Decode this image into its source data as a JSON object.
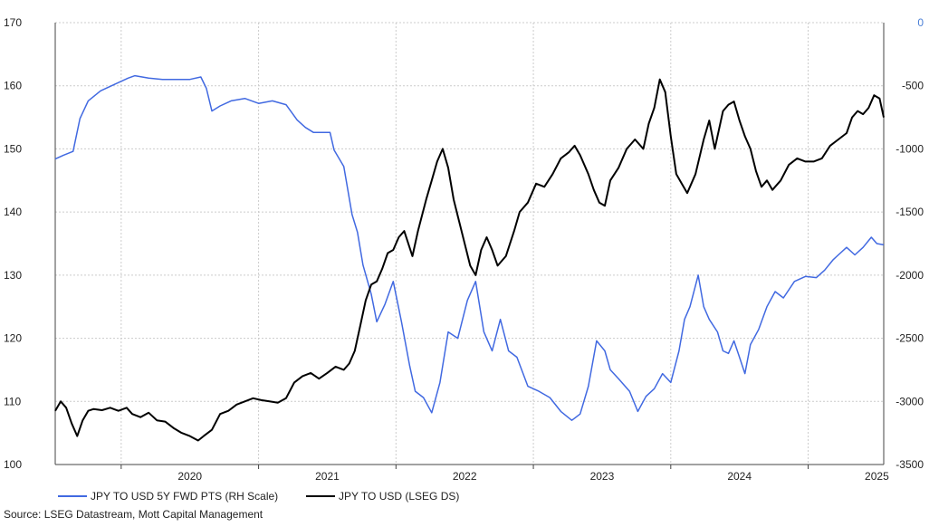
{
  "chart_data": {
    "type": "line",
    "title": "",
    "xlabel": "",
    "ylabel": "",
    "x_ticks": [
      "2020",
      "2021",
      "2022",
      "2023",
      "2024",
      "2025"
    ],
    "x_range": [
      2019.52,
      2025.55
    ],
    "y_left": {
      "range": [
        100,
        170
      ],
      "ticks": [
        "100",
        "110",
        "120",
        "130",
        "140",
        "150",
        "160",
        "170"
      ]
    },
    "y_right": {
      "range": [
        -3500,
        0
      ],
      "ticks": [
        "0",
        "-500",
        "-1000",
        "-1500",
        "-2000",
        "-2500",
        "-3000",
        "-3500"
      ]
    },
    "grid": true,
    "legend_position": "bottom-left",
    "series": [
      {
        "name": "JPY TO USD 5Y FWD PTS (RH Scale)",
        "axis": "right",
        "color": "#4169e1",
        "points": [
          [
            2019.52,
            -1080
          ],
          [
            2019.58,
            -1050
          ],
          [
            2019.65,
            -1020
          ],
          [
            2019.7,
            -760
          ],
          [
            2019.76,
            -620
          ],
          [
            2019.85,
            -540
          ],
          [
            2019.95,
            -490
          ],
          [
            2020.05,
            -440
          ],
          [
            2020.1,
            -420
          ],
          [
            2020.2,
            -440
          ],
          [
            2020.3,
            -450
          ],
          [
            2020.4,
            -450
          ],
          [
            2020.5,
            -450
          ],
          [
            2020.58,
            -430
          ],
          [
            2020.62,
            -520
          ],
          [
            2020.66,
            -700
          ],
          [
            2020.72,
            -660
          ],
          [
            2020.8,
            -620
          ],
          [
            2020.9,
            -600
          ],
          [
            2021.0,
            -640
          ],
          [
            2021.1,
            -620
          ],
          [
            2021.2,
            -650
          ],
          [
            2021.28,
            -770
          ],
          [
            2021.34,
            -830
          ],
          [
            2021.4,
            -870
          ],
          [
            2021.45,
            -870
          ],
          [
            2021.48,
            -870
          ],
          [
            2021.52,
            -870
          ],
          [
            2021.55,
            -1010
          ],
          [
            2021.62,
            -1140
          ],
          [
            2021.68,
            -1520
          ],
          [
            2021.72,
            -1660
          ],
          [
            2021.76,
            -1920
          ],
          [
            2021.82,
            -2150
          ],
          [
            2021.86,
            -2370
          ],
          [
            2021.92,
            -2230
          ],
          [
            2021.98,
            -2050
          ],
          [
            2022.04,
            -2370
          ],
          [
            2022.1,
            -2720
          ],
          [
            2022.14,
            -2920
          ],
          [
            2022.2,
            -2970
          ],
          [
            2022.26,
            -3090
          ],
          [
            2022.32,
            -2850
          ],
          [
            2022.38,
            -2450
          ],
          [
            2022.45,
            -2500
          ],
          [
            2022.52,
            -2200
          ],
          [
            2022.58,
            -2050
          ],
          [
            2022.64,
            -2450
          ],
          [
            2022.7,
            -2600
          ],
          [
            2022.76,
            -2350
          ],
          [
            2022.82,
            -2600
          ],
          [
            2022.88,
            -2650
          ],
          [
            2022.96,
            -2880
          ],
          [
            2023.04,
            -2920
          ],
          [
            2023.12,
            -2970
          ],
          [
            2023.2,
            -3080
          ],
          [
            2023.28,
            -3150
          ],
          [
            2023.34,
            -3100
          ],
          [
            2023.4,
            -2880
          ],
          [
            2023.46,
            -2520
          ],
          [
            2023.52,
            -2600
          ],
          [
            2023.56,
            -2750
          ],
          [
            2023.62,
            -2820
          ],
          [
            2023.7,
            -2920
          ],
          [
            2023.76,
            -3080
          ],
          [
            2023.82,
            -2960
          ],
          [
            2023.88,
            -2900
          ],
          [
            2023.94,
            -2780
          ],
          [
            2024.0,
            -2850
          ],
          [
            2024.06,
            -2600
          ],
          [
            2024.1,
            -2350
          ],
          [
            2024.14,
            -2250
          ],
          [
            2024.2,
            -2000
          ],
          [
            2024.24,
            -2250
          ],
          [
            2024.28,
            -2350
          ],
          [
            2024.34,
            -2450
          ],
          [
            2024.38,
            -2600
          ],
          [
            2024.42,
            -2620
          ],
          [
            2024.46,
            -2520
          ],
          [
            2024.5,
            -2650
          ],
          [
            2024.54,
            -2780
          ],
          [
            2024.58,
            -2550
          ],
          [
            2024.64,
            -2430
          ],
          [
            2024.7,
            -2250
          ],
          [
            2024.76,
            -2130
          ],
          [
            2024.82,
            -2180
          ],
          [
            2024.9,
            -2050
          ],
          [
            2024.98,
            -2010
          ],
          [
            2025.06,
            -2020
          ],
          [
            2025.12,
            -1960
          ],
          [
            2025.18,
            -1880
          ],
          [
            2025.22,
            -1840
          ],
          [
            2025.28,
            -1780
          ],
          [
            2025.34,
            -1840
          ],
          [
            2025.4,
            -1780
          ],
          [
            2025.46,
            -1700
          ],
          [
            2025.5,
            -1750
          ],
          [
            2025.55,
            -1760
          ]
        ]
      },
      {
        "name": "JPY TO USD (LSEG DS)",
        "axis": "left",
        "color": "#000000",
        "points": [
          [
            2019.52,
            108.5
          ],
          [
            2019.56,
            110.0
          ],
          [
            2019.6,
            109.0
          ],
          [
            2019.64,
            106.5
          ],
          [
            2019.68,
            104.5
          ],
          [
            2019.72,
            107.0
          ],
          [
            2019.76,
            108.5
          ],
          [
            2019.8,
            108.8
          ],
          [
            2019.86,
            108.6
          ],
          [
            2019.92,
            109.0
          ],
          [
            2019.98,
            108.5
          ],
          [
            2020.04,
            109.0
          ],
          [
            2020.08,
            108.0
          ],
          [
            2020.14,
            107.5
          ],
          [
            2020.2,
            108.2
          ],
          [
            2020.26,
            107.0
          ],
          [
            2020.32,
            106.8
          ],
          [
            2020.38,
            105.8
          ],
          [
            2020.44,
            105.0
          ],
          [
            2020.5,
            104.5
          ],
          [
            2020.56,
            103.8
          ],
          [
            2020.6,
            104.5
          ],
          [
            2020.66,
            105.5
          ],
          [
            2020.72,
            108.0
          ],
          [
            2020.78,
            108.5
          ],
          [
            2020.84,
            109.5
          ],
          [
            2020.9,
            110.0
          ],
          [
            2020.96,
            110.5
          ],
          [
            2021.02,
            110.2
          ],
          [
            2021.08,
            110.0
          ],
          [
            2021.14,
            109.8
          ],
          [
            2021.2,
            110.5
          ],
          [
            2021.26,
            113.0
          ],
          [
            2021.32,
            114.0
          ],
          [
            2021.38,
            114.5
          ],
          [
            2021.44,
            113.6
          ],
          [
            2021.5,
            114.5
          ],
          [
            2021.56,
            115.5
          ],
          [
            2021.62,
            115.0
          ],
          [
            2021.66,
            116.0
          ],
          [
            2021.7,
            118.0
          ],
          [
            2021.74,
            122.0
          ],
          [
            2021.78,
            126.0
          ],
          [
            2021.82,
            128.5
          ],
          [
            2021.86,
            129.0
          ],
          [
            2021.9,
            131.0
          ],
          [
            2021.94,
            133.5
          ],
          [
            2021.98,
            134.0
          ],
          [
            2022.02,
            136.0
          ],
          [
            2022.06,
            137.0
          ],
          [
            2022.12,
            133.0
          ],
          [
            2022.16,
            137.0
          ],
          [
            2022.22,
            142.0
          ],
          [
            2022.26,
            145.0
          ],
          [
            2022.3,
            148.0
          ],
          [
            2022.34,
            150.0
          ],
          [
            2022.38,
            147.0
          ],
          [
            2022.42,
            142.0
          ],
          [
            2022.46,
            138.5
          ],
          [
            2022.5,
            135.0
          ],
          [
            2022.54,
            131.5
          ],
          [
            2022.58,
            130.0
          ],
          [
            2022.62,
            134.0
          ],
          [
            2022.66,
            136.0
          ],
          [
            2022.7,
            134.0
          ],
          [
            2022.74,
            131.5
          ],
          [
            2022.8,
            133.0
          ],
          [
            2022.86,
            137.0
          ],
          [
            2022.9,
            140.0
          ],
          [
            2022.96,
            141.5
          ],
          [
            2023.02,
            144.5
          ],
          [
            2023.08,
            144.0
          ],
          [
            2023.14,
            146.0
          ],
          [
            2023.2,
            148.5
          ],
          [
            2023.26,
            149.5
          ],
          [
            2023.3,
            150.5
          ],
          [
            2023.34,
            149.0
          ],
          [
            2023.4,
            146.0
          ],
          [
            2023.44,
            143.5
          ],
          [
            2023.48,
            141.5
          ],
          [
            2023.52,
            141.0
          ],
          [
            2023.56,
            145.0
          ],
          [
            2023.62,
            147.0
          ],
          [
            2023.68,
            150.0
          ],
          [
            2023.74,
            151.5
          ],
          [
            2023.8,
            150.0
          ],
          [
            2023.84,
            154.0
          ],
          [
            2023.88,
            156.5
          ],
          [
            2023.92,
            161.0
          ],
          [
            2023.96,
            159.0
          ],
          [
            2024.0,
            152.0
          ],
          [
            2024.04,
            146.0
          ],
          [
            2024.08,
            144.5
          ],
          [
            2024.12,
            143.0
          ],
          [
            2024.18,
            146.0
          ],
          [
            2024.24,
            151.5
          ],
          [
            2024.28,
            154.5
          ],
          [
            2024.32,
            150.0
          ],
          [
            2024.38,
            156.0
          ],
          [
            2024.42,
            157.0
          ],
          [
            2024.46,
            157.5
          ],
          [
            2024.5,
            154.5
          ],
          [
            2024.54,
            152.0
          ],
          [
            2024.58,
            150.0
          ],
          [
            2024.62,
            146.5
          ],
          [
            2024.66,
            144.0
          ],
          [
            2024.7,
            145.0
          ],
          [
            2024.74,
            143.5
          ],
          [
            2024.8,
            145.0
          ],
          [
            2024.86,
            147.5
          ],
          [
            2024.92,
            148.5
          ],
          [
            2024.98,
            148.0
          ],
          [
            2025.04,
            148.0
          ],
          [
            2025.1,
            148.5
          ],
          [
            2025.16,
            150.5
          ],
          [
            2025.22,
            151.5
          ],
          [
            2025.28,
            152.5
          ],
          [
            2025.32,
            155.0
          ],
          [
            2025.36,
            156.0
          ],
          [
            2025.4,
            155.5
          ],
          [
            2025.44,
            156.5
          ],
          [
            2025.48,
            158.5
          ],
          [
            2025.52,
            158.0
          ],
          [
            2025.55,
            155.0
          ]
        ]
      }
    ]
  },
  "source_text": "Source: LSEG Datastream, Mott Capital Management",
  "colors": {
    "right_axis_zero_label": "#4a7fd6",
    "grid": "#cccccc",
    "axis": "#444444"
  }
}
